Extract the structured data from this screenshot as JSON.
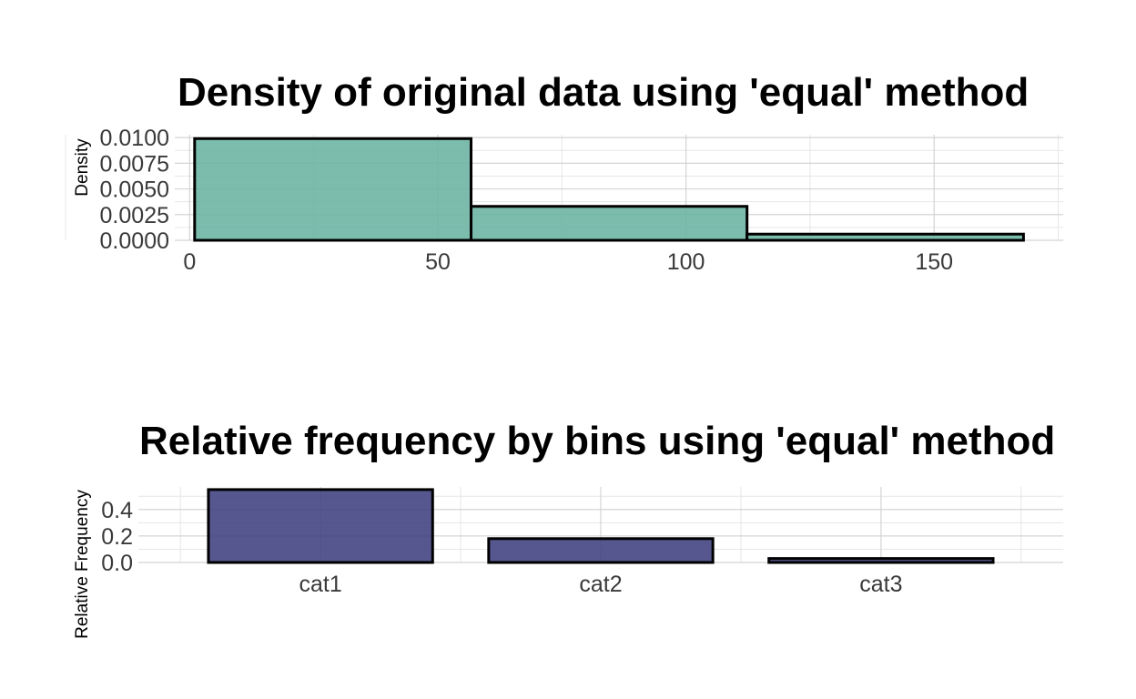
{
  "chart_data": [
    {
      "type": "bar",
      "subtype": "histogram",
      "title": "Density of original data using 'equal' method",
      "xlabel": "",
      "ylabel": "Density",
      "xlim": [
        -3,
        176
      ],
      "ylim": [
        0,
        0.0101
      ],
      "x_ticks": [
        0,
        50,
        100,
        150
      ],
      "x_tick_labels": [
        "0",
        "50",
        "100",
        "150"
      ],
      "y_ticks": [
        0,
        0.0025,
        0.005,
        0.0075,
        0.01
      ],
      "y_tick_labels": [
        "0.0000",
        "0.0025",
        "0.0050",
        "0.0075",
        "0.0100"
      ],
      "bins": [
        {
          "x0": 1,
          "x1": 56.7,
          "density": 0.0099
        },
        {
          "x0": 56.7,
          "x1": 112.3,
          "density": 0.0033
        },
        {
          "x0": 112.3,
          "x1": 168,
          "density": 0.0006
        }
      ],
      "fill_color": "#69b3a2",
      "edge_color": "#000000",
      "grid": true
    },
    {
      "type": "bar",
      "title": "Relative frequency by bins using 'equal' method",
      "xlabel": "",
      "ylabel": "Relative Frequency",
      "ylim": [
        0,
        0.57
      ],
      "y_ticks": [
        0,
        0.2,
        0.4
      ],
      "y_tick_labels": [
        "0.0",
        "0.2",
        "0.4"
      ],
      "categories": [
        "cat1",
        "cat2",
        "cat3"
      ],
      "values": [
        0.55,
        0.18,
        0.03
      ],
      "fill_color": "#404080",
      "edge_color": "#000000",
      "grid": true
    }
  ]
}
